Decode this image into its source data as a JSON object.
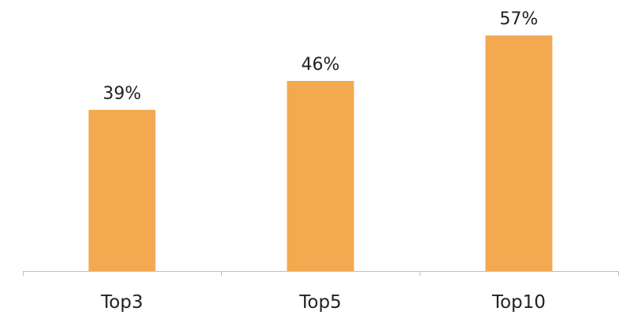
{
  "chart_data": {
    "type": "bar",
    "categories": [
      "Top3",
      "Top5",
      "Top10"
    ],
    "values": [
      39,
      46,
      57
    ],
    "data_labels": [
      "39%",
      "46%",
      "57%"
    ],
    "unit": "%",
    "title": "",
    "xlabel": "",
    "ylabel": "",
    "ylim": [
      0,
      60
    ],
    "grid": false,
    "legend": "none",
    "bar_color": "#F2A950",
    "axis_color": "#BFBFBF",
    "text_color": "#222222"
  }
}
